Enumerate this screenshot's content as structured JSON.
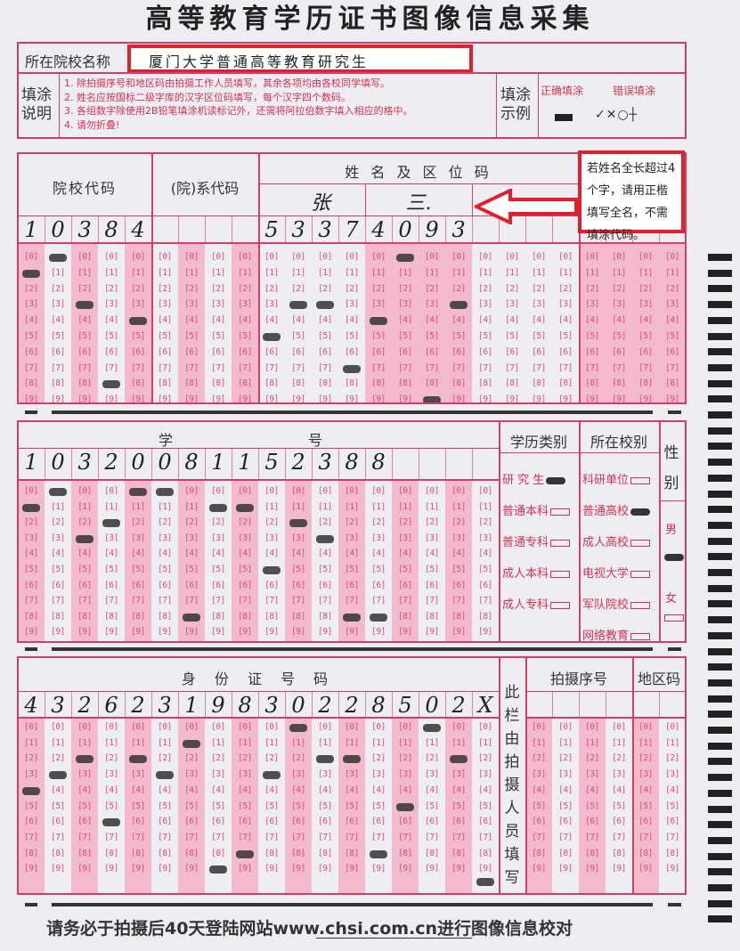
{
  "title": "高等教育学历证书图像信息采集",
  "school_name": {
    "label": "所在院校名称",
    "value": "厦门大学普通高等教育研究生"
  },
  "instructions": {
    "label": "填涂说明",
    "items": [
      "1. 除拍摄序号和地区码由拍摄工作人员填写，其余各项均由各校同学填写。",
      "2. 姓名应按国标二级字库的汉字区位码填写，每个汉字四个数码。",
      "3. 各组数字除使用2B铅笔填涂机读标记外，还需将阿拉伯数字填入相应的格中。",
      "4. 请勿折叠!"
    ]
  },
  "example": {
    "label": "填涂示例",
    "correct": "正确填涂",
    "wrong": "错误填涂",
    "wrong_glyphs": "✓✕○┼"
  },
  "section1": {
    "school_code_label": "院校代码",
    "dept_code_label": "(院)系代码",
    "name_label": "姓 名 及 区 位 码",
    "name_chars": [
      "张",
      "三."
    ],
    "digits": [
      "1",
      "0",
      "3",
      "8",
      "4",
      "",
      "",
      "",
      "",
      "5",
      "3",
      "3",
      "7",
      "4",
      "0",
      "9",
      "3",
      "",
      "",
      "",
      "",
      "",
      "",
      "",
      ""
    ],
    "marks": [
      1,
      0,
      3,
      8,
      4,
      null,
      null,
      null,
      null,
      5,
      3,
      3,
      7,
      4,
      0,
      9,
      3,
      null,
      null,
      null,
      null,
      null,
      null,
      null,
      null
    ],
    "callout": "若姓名全长超过4个字，请用正楷填写全名，不需填涂代码。"
  },
  "section2": {
    "student_id_label": "学　　号",
    "digits": [
      "1",
      "0",
      "3",
      "2",
      "0",
      "0",
      "8",
      "1",
      "1",
      "5",
      "2",
      "3",
      "8",
      "8",
      "",
      "",
      "",
      ""
    ],
    "marks": [
      1,
      0,
      3,
      2,
      0,
      0,
      8,
      1,
      1,
      5,
      2,
      3,
      8,
      8,
      null,
      null,
      null,
      null
    ],
    "degree_label": "学历类别",
    "degree_options": [
      {
        "label": "研 究 生",
        "checked": true
      },
      {
        "label": "普通本科",
        "checked": false
      },
      {
        "label": "普通专科",
        "checked": false
      },
      {
        "label": "成人本科",
        "checked": false
      },
      {
        "label": "成人专科",
        "checked": false
      }
    ],
    "school_type_label": "所在校别",
    "school_type_options": [
      {
        "label": "科研单位",
        "checked": false
      },
      {
        "label": "普通高校",
        "checked": true
      },
      {
        "label": "成人高校",
        "checked": false
      },
      {
        "label": "电视大学",
        "checked": false
      },
      {
        "label": "军队院校",
        "checked": false
      },
      {
        "label": "网络教育",
        "checked": false
      }
    ],
    "gender_label": "性别",
    "gender_options": [
      {
        "label": "男",
        "checked": true
      },
      {
        "label": "女",
        "checked": false
      }
    ]
  },
  "section3": {
    "id_label": "身 份 证 号 码",
    "digits": [
      "4",
      "3",
      "2",
      "6",
      "2",
      "3",
      "1",
      "9",
      "8",
      "3",
      "0",
      "2",
      "2",
      "8",
      "5",
      "0",
      "2",
      "X"
    ],
    "marks": [
      4,
      3,
      2,
      6,
      2,
      3,
      1,
      9,
      8,
      3,
      0,
      2,
      2,
      8,
      5,
      0,
      2,
      "X"
    ],
    "staff_note": "此栏由拍摄人员填写",
    "photo_seq_label": "拍摄序号",
    "region_label": "地区码"
  },
  "footer": "请务必于拍摄后40天登陆网站www.chsi.com.cn进行图像信息校对"
}
